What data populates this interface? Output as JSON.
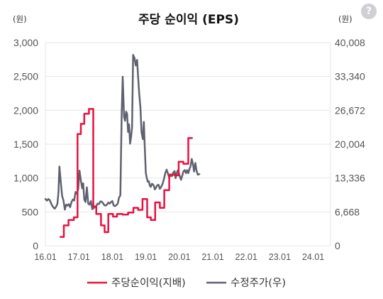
{
  "chart_data": {
    "type": "line",
    "title": "주당 순이익 (EPS)",
    "left_unit": "(원)",
    "right_unit": "(원)",
    "help_icon": "?",
    "categories": [
      "16.01",
      "17.01",
      "18.01",
      "19.01",
      "20.01",
      "21.01",
      "22.01",
      "23.01",
      "24.01"
    ],
    "left_axis": {
      "ticks": [
        0,
        500,
        1000,
        1500,
        2000,
        2500,
        3000
      ],
      "tick_labels": [
        "0",
        "500",
        "1,000",
        "1,500",
        "2,000",
        "2,500",
        "3,000"
      ],
      "ylim": [
        0,
        3000
      ]
    },
    "right_axis": {
      "ticks": [
        0,
        6668,
        13336,
        20004,
        26672,
        33340,
        40008
      ],
      "tick_labels": [
        "0",
        "6,668",
        "13,336",
        "20,004",
        "26,672",
        "33,340",
        "40,008"
      ],
      "ylim": [
        0,
        40008
      ]
    },
    "grid": "horizontal",
    "legend_position": "bottom",
    "series": [
      {
        "name": "주당순이익(지배)",
        "axis": "left",
        "color": "#e8113f",
        "points": [
          [
            0.45,
            130
          ],
          [
            0.55,
            130
          ],
          [
            0.55,
            300
          ],
          [
            0.69,
            300
          ],
          [
            0.69,
            380
          ],
          [
            0.85,
            380
          ],
          [
            0.85,
            420
          ],
          [
            0.96,
            420
          ],
          [
            0.96,
            1650
          ],
          [
            1.06,
            1650
          ],
          [
            1.06,
            1800
          ],
          [
            1.16,
            1800
          ],
          [
            1.16,
            1950
          ],
          [
            1.3,
            1950
          ],
          [
            1.3,
            2020
          ],
          [
            1.43,
            2020
          ],
          [
            1.43,
            580
          ],
          [
            1.52,
            580
          ],
          [
            1.52,
            470
          ],
          [
            1.66,
            470
          ],
          [
            1.66,
            300
          ],
          [
            1.77,
            300
          ],
          [
            1.77,
            200
          ],
          [
            1.88,
            200
          ],
          [
            1.88,
            470
          ],
          [
            2.02,
            470
          ],
          [
            2.02,
            430
          ],
          [
            2.14,
            430
          ],
          [
            2.14,
            470
          ],
          [
            2.3,
            470
          ],
          [
            2.3,
            460
          ],
          [
            2.47,
            460
          ],
          [
            2.47,
            490
          ],
          [
            2.63,
            490
          ],
          [
            2.63,
            560
          ],
          [
            2.77,
            560
          ],
          [
            2.77,
            530
          ],
          [
            2.9,
            530
          ],
          [
            2.9,
            690
          ],
          [
            3.04,
            690
          ],
          [
            3.04,
            420
          ],
          [
            3.15,
            420
          ],
          [
            3.15,
            380
          ],
          [
            3.28,
            380
          ],
          [
            3.28,
            640
          ],
          [
            3.42,
            640
          ],
          [
            3.42,
            560
          ],
          [
            3.55,
            560
          ],
          [
            3.55,
            820
          ],
          [
            3.7,
            820
          ],
          [
            3.7,
            1050
          ],
          [
            3.86,
            1050
          ],
          [
            3.86,
            1040
          ],
          [
            3.98,
            1040
          ],
          [
            3.98,
            1240
          ],
          [
            4.12,
            1240
          ],
          [
            4.12,
            1210
          ],
          [
            4.27,
            1210
          ],
          [
            4.27,
            1590
          ],
          [
            4.38,
            1590
          ]
        ]
      },
      {
        "name": "수정주가(우)",
        "axis": "right",
        "color": "#5f6170",
        "points": [
          [
            0,
            9200
          ],
          [
            0.05,
            8900
          ],
          [
            0.09,
            9200
          ],
          [
            0.13,
            9000
          ],
          [
            0.18,
            8200
          ],
          [
            0.23,
            7600
          ],
          [
            0.28,
            7300
          ],
          [
            0.33,
            7800
          ],
          [
            0.36,
            8300
          ],
          [
            0.39,
            10500
          ],
          [
            0.42,
            15600
          ],
          [
            0.46,
            12500
          ],
          [
            0.5,
            9800
          ],
          [
            0.54,
            8900
          ],
          [
            0.58,
            7100
          ],
          [
            0.62,
            8100
          ],
          [
            0.66,
            7900
          ],
          [
            0.7,
            8200
          ],
          [
            0.74,
            7600
          ],
          [
            0.78,
            8600
          ],
          [
            0.82,
            9100
          ],
          [
            0.86,
            8900
          ],
          [
            0.9,
            10600
          ],
          [
            0.94,
            10200
          ],
          [
            0.98,
            11200
          ],
          [
            1.02,
            14800
          ],
          [
            1.06,
            12900
          ],
          [
            1.1,
            11300
          ],
          [
            1.13,
            12300
          ],
          [
            1.16,
            9100
          ],
          [
            1.2,
            8600
          ],
          [
            1.24,
            11500
          ],
          [
            1.28,
            8300
          ],
          [
            1.32,
            8100
          ],
          [
            1.36,
            8800
          ],
          [
            1.4,
            7200
          ],
          [
            1.44,
            7400
          ],
          [
            1.48,
            7700
          ],
          [
            1.52,
            7800
          ],
          [
            1.56,
            8300
          ],
          [
            1.6,
            8200
          ],
          [
            1.64,
            8700
          ],
          [
            1.68,
            8700
          ],
          [
            1.72,
            8400
          ],
          [
            1.76,
            8000
          ],
          [
            1.8,
            7900
          ],
          [
            1.84,
            8100
          ],
          [
            1.88,
            8500
          ],
          [
            1.92,
            8300
          ],
          [
            1.96,
            8600
          ],
          [
            2.0,
            8800
          ],
          [
            2.04,
            7900
          ],
          [
            2.08,
            7800
          ],
          [
            2.12,
            8000
          ],
          [
            2.16,
            8300
          ],
          [
            2.2,
            9500
          ],
          [
            2.24,
            9900
          ],
          [
            2.28,
            26100
          ],
          [
            2.31,
            33300
          ],
          [
            2.35,
            25400
          ],
          [
            2.38,
            24600
          ],
          [
            2.41,
            26400
          ],
          [
            2.44,
            26000
          ],
          [
            2.47,
            22400
          ],
          [
            2.5,
            23900
          ],
          [
            2.53,
            20100
          ],
          [
            2.56,
            21400
          ],
          [
            2.59,
            23300
          ],
          [
            2.62,
            37600
          ],
          [
            2.66,
            37000
          ],
          [
            2.7,
            35500
          ],
          [
            2.74,
            36600
          ],
          [
            2.77,
            33300
          ],
          [
            2.8,
            30100
          ],
          [
            2.84,
            27200
          ],
          [
            2.87,
            22400
          ],
          [
            2.91,
            21000
          ],
          [
            2.94,
            24400
          ],
          [
            2.97,
            19100
          ],
          [
            3.0,
            14300
          ],
          [
            3.03,
            13300
          ],
          [
            3.06,
            12600
          ],
          [
            3.09,
            12700
          ],
          [
            3.12,
            11800
          ],
          [
            3.15,
            11600
          ],
          [
            3.18,
            12200
          ],
          [
            3.21,
            12100
          ],
          [
            3.24,
            11800
          ],
          [
            3.27,
            11100
          ],
          [
            3.3,
            11400
          ],
          [
            3.34,
            11900
          ],
          [
            3.38,
            12000
          ],
          [
            3.42,
            11200
          ],
          [
            3.46,
            11600
          ],
          [
            3.5,
            12200
          ],
          [
            3.54,
            13100
          ],
          [
            3.58,
            14300
          ],
          [
            3.62,
            15000
          ],
          [
            3.66,
            14200
          ],
          [
            3.7,
            13400
          ],
          [
            3.74,
            14000
          ],
          [
            3.78,
            13700
          ],
          [
            3.82,
            14400
          ],
          [
            3.86,
            14700
          ],
          [
            3.89,
            13300
          ],
          [
            3.92,
            14200
          ],
          [
            3.95,
            14800
          ],
          [
            3.98,
            14400
          ],
          [
            4.02,
            13600
          ],
          [
            4.05,
            13000
          ],
          [
            4.09,
            13800
          ],
          [
            4.12,
            14600
          ],
          [
            4.16,
            14900
          ],
          [
            4.2,
            14300
          ],
          [
            4.23,
            14900
          ],
          [
            4.27,
            14300
          ],
          [
            4.3,
            15100
          ],
          [
            4.34,
            15700
          ],
          [
            4.37,
            17100
          ],
          [
            4.41,
            16000
          ],
          [
            4.44,
            14600
          ],
          [
            4.48,
            16300
          ],
          [
            4.51,
            14900
          ],
          [
            4.55,
            14000
          ],
          [
            4.6,
            14100
          ]
        ]
      }
    ]
  }
}
